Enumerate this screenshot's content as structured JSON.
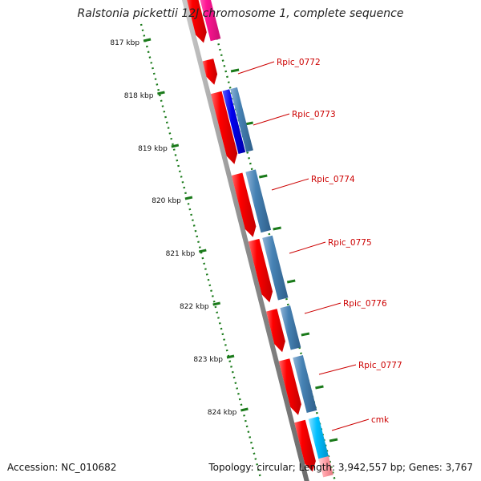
{
  "title": "Ralstonia pickettii 12J chromosome 1, complete sequence",
  "accession": "Accession: NC_010682",
  "summary": "Topology: circular; Length: 3,942,557 bp; Genes: 3,767",
  "kbp_labels": [
    "817 kbp",
    "818 kbp",
    "819 kbp",
    "820 kbp",
    "821 kbp",
    "822 kbp",
    "823 kbp",
    "824 kbp"
  ],
  "genes": [
    {
      "label": "Rpic_0772"
    },
    {
      "label": "Rpic_0773"
    },
    {
      "label": "Rpic_0774"
    },
    {
      "label": "Rpic_0775"
    },
    {
      "label": "Rpic_0776"
    },
    {
      "label": "Rpic_0777"
    },
    {
      "label": "cmk"
    }
  ],
  "colors": {
    "cds": "#ff0000",
    "gene_blue": "#4682b4",
    "gene_dark_blue": "#0000ee",
    "gene_cyan": "#00bfff",
    "gene_magenta": "#ff1493",
    "gene_pink": "#ff9aa2",
    "backbone": "#8c8c8c",
    "ticks": "#1a7a1a",
    "label_text": "#cc0000"
  }
}
